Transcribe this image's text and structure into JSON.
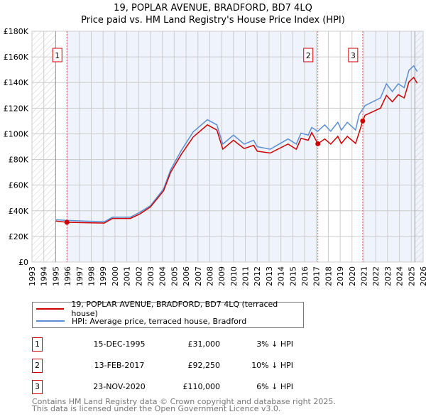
{
  "title": "19, POPLAR AVENUE, BRADFORD, BD7 4LQ",
  "subtitle": "Price paid vs. HM Land Registry's House Price Index (HPI)",
  "colors": {
    "property": "#cc0000",
    "hpi": "#5b8fd4",
    "shade": "#eef3fc"
  },
  "chart_data": {
    "type": "line",
    "xlim": [
      1993,
      2026
    ],
    "ylim": [
      0,
      180000
    ],
    "x_ticks": [
      "1993",
      "1994",
      "1995",
      "1996",
      "1997",
      "1998",
      "1999",
      "2000",
      "2001",
      "2002",
      "2003",
      "2004",
      "2005",
      "2006",
      "2007",
      "2008",
      "2009",
      "2010",
      "2011",
      "2012",
      "2013",
      "2014",
      "2015",
      "2016",
      "2017",
      "2018",
      "2019",
      "2020",
      "2021",
      "2022",
      "2023",
      "2024",
      "2025",
      "2026"
    ],
    "y_ticks": [
      {
        "v": 0,
        "label": "£0"
      },
      {
        "v": 20000,
        "label": "£20K"
      },
      {
        "v": 40000,
        "label": "£40K"
      },
      {
        "v": 60000,
        "label": "£60K"
      },
      {
        "v": 80000,
        "label": "£80K"
      },
      {
        "v": 100000,
        "label": "£100K"
      },
      {
        "v": 120000,
        "label": "£120K"
      },
      {
        "v": 140000,
        "label": "£140K"
      },
      {
        "v": 160000,
        "label": "£160K"
      },
      {
        "v": 180000,
        "label": "£180K"
      }
    ],
    "hatched_ranges": [
      [
        1993,
        1995
      ],
      [
        2025.3,
        2026
      ]
    ],
    "series": [
      {
        "name": "19, POPLAR AVENUE, BRADFORD, BD7 4LQ (terraced house)",
        "key": "property",
        "points": [
          [
            1995,
            32000
          ],
          [
            1995.95,
            31000
          ],
          [
            1999.1,
            30400
          ],
          [
            1999.8,
            34000
          ],
          [
            2001.3,
            34000
          ],
          [
            2002.1,
            37500
          ],
          [
            2003,
            43000
          ],
          [
            2004.1,
            55500
          ],
          [
            2004.7,
            70000
          ],
          [
            2005.6,
            84000
          ],
          [
            2006.6,
            97500
          ],
          [
            2007.8,
            107000
          ],
          [
            2008.6,
            103000
          ],
          [
            2009.1,
            88000
          ],
          [
            2010,
            95000
          ],
          [
            2010.9,
            88500
          ],
          [
            2011.7,
            91000
          ],
          [
            2012,
            86500
          ],
          [
            2013.1,
            85000
          ],
          [
            2014.6,
            92000
          ],
          [
            2015.3,
            88000
          ],
          [
            2015.7,
            96500
          ],
          [
            2016.3,
            95000
          ],
          [
            2016.6,
            101000
          ],
          [
            2017.12,
            92250
          ],
          [
            2017.7,
            96000
          ],
          [
            2018.2,
            92000
          ],
          [
            2018.8,
            98000
          ],
          [
            2019.1,
            92500
          ],
          [
            2019.6,
            98000
          ],
          [
            2020.3,
            92500
          ],
          [
            2020.6,
            101000
          ],
          [
            2020.9,
            110000
          ],
          [
            2021.1,
            114500
          ],
          [
            2022.4,
            120000
          ],
          [
            2022.9,
            130000
          ],
          [
            2023.4,
            125000
          ],
          [
            2023.9,
            130500
          ],
          [
            2024.4,
            128000
          ],
          [
            2024.8,
            140500
          ],
          [
            2025.2,
            144000
          ],
          [
            2025.5,
            139500
          ]
        ]
      },
      {
        "name": "HPI: Average price, terraced house, Bradford",
        "key": "hpi",
        "points": [
          [
            1995,
            33000
          ],
          [
            1996,
            32500
          ],
          [
            1999.1,
            31400
          ],
          [
            1999.8,
            35000
          ],
          [
            2001.3,
            35000
          ],
          [
            2002.1,
            38800
          ],
          [
            2003,
            44000
          ],
          [
            2004.1,
            57000
          ],
          [
            2004.7,
            72000
          ],
          [
            2005.6,
            87000
          ],
          [
            2006.6,
            101500
          ],
          [
            2007.8,
            111000
          ],
          [
            2008.6,
            107000
          ],
          [
            2009.1,
            92000
          ],
          [
            2010,
            99000
          ],
          [
            2010.9,
            92000
          ],
          [
            2011.7,
            95000
          ],
          [
            2012,
            90000
          ],
          [
            2013.1,
            88000
          ],
          [
            2014.6,
            96000
          ],
          [
            2015.3,
            92000
          ],
          [
            2015.7,
            100600
          ],
          [
            2016.3,
            99000
          ],
          [
            2016.6,
            105000
          ],
          [
            2017.1,
            102000
          ],
          [
            2017.7,
            107000
          ],
          [
            2018.2,
            102000
          ],
          [
            2018.8,
            109000
          ],
          [
            2019.1,
            103000
          ],
          [
            2019.6,
            109000
          ],
          [
            2020.3,
            103000
          ],
          [
            2020.6,
            115000
          ],
          [
            2021.1,
            122000
          ],
          [
            2022.4,
            128000
          ],
          [
            2022.9,
            139000
          ],
          [
            2023.4,
            133000
          ],
          [
            2023.9,
            139000
          ],
          [
            2024.4,
            136000
          ],
          [
            2024.8,
            149500
          ],
          [
            2025.2,
            153000
          ],
          [
            2025.5,
            148600
          ]
        ]
      }
    ],
    "sales": [
      {
        "label": "1",
        "x": 1995.95,
        "y": 31000
      },
      {
        "label": "2",
        "x": 2017.12,
        "y": 92250
      },
      {
        "label": "3",
        "x": 2020.9,
        "y": 110000
      }
    ]
  },
  "legend": {
    "property": "19, POPLAR AVENUE, BRADFORD, BD7 4LQ (terraced house)",
    "hpi": "HPI: Average price, terraced house, Bradford"
  },
  "table": [
    {
      "num": "1",
      "date": "15-DEC-1995",
      "price": "£31,000",
      "pct": "3% ↓ HPI"
    },
    {
      "num": "2",
      "date": "13-FEB-2017",
      "price": "£92,250",
      "pct": "10% ↓ HPI"
    },
    {
      "num": "3",
      "date": "23-NOV-2020",
      "price": "£110,000",
      "pct": "6% ↓ HPI"
    }
  ],
  "footer": {
    "line1": "Contains HM Land Registry data © Crown copyright and database right 2025.",
    "line2": "This data is licensed under the Open Government Licence v3.0."
  }
}
